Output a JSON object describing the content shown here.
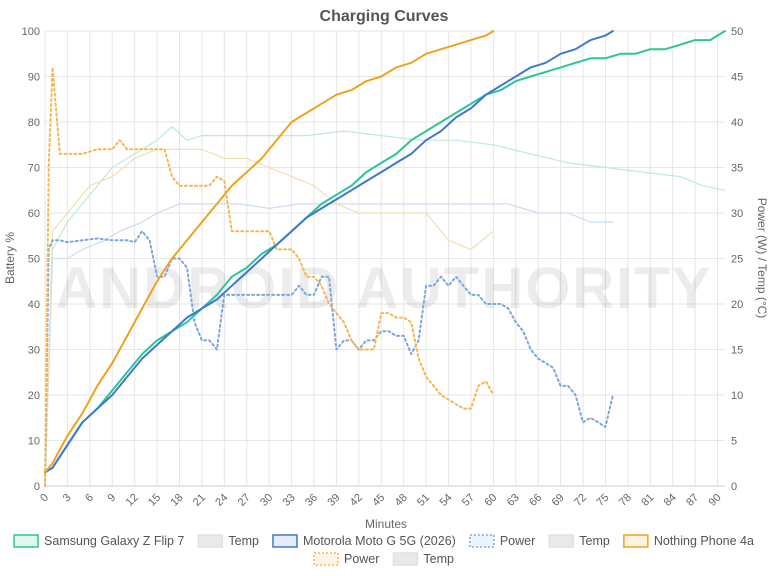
{
  "chart_data": {
    "type": "line",
    "title": "Charging Curves",
    "xlabel": "Minutes",
    "ylabel": "Battery %",
    "y2label": "Power (W) / Temp (°C)",
    "xlim": [
      0,
      91
    ],
    "ylim": [
      0,
      100
    ],
    "y2lim": [
      0,
      50
    ],
    "xticks": [
      "0",
      "3",
      "6",
      "9",
      "12",
      "15",
      "18",
      "21",
      "24",
      "27",
      "30",
      "33",
      "36",
      "39",
      "42",
      "45",
      "48",
      "51",
      "54",
      "57",
      "60",
      "63",
      "66",
      "69",
      "72",
      "75",
      "78",
      "81",
      "84",
      "87",
      "90"
    ],
    "yticks": [
      "0",
      "10",
      "20",
      "30",
      "40",
      "50",
      "60",
      "70",
      "80",
      "90",
      "100"
    ],
    "y2ticks": [
      "0",
      "5",
      "10",
      "15",
      "20",
      "25",
      "30",
      "35",
      "40",
      "45",
      "50"
    ],
    "grid": true,
    "legend_position": "bottom",
    "watermark": "ANDROID AUTHORITY",
    "series": [
      {
        "name": "Samsung Galaxy Z Flip 7",
        "metric": "battery",
        "axis": "left",
        "color": "#2bc59a",
        "style": "solid",
        "x": [
          0,
          1,
          3,
          5,
          7,
          9,
          11,
          13,
          15,
          17,
          19,
          21,
          23,
          25,
          27,
          29,
          31,
          33,
          35,
          37,
          39,
          41,
          43,
          45,
          47,
          49,
          51,
          53,
          55,
          57,
          59,
          61,
          63,
          65,
          67,
          69,
          71,
          73,
          75,
          77,
          79,
          81,
          83,
          85,
          87,
          89,
          91
        ],
        "y": [
          3,
          4,
          9,
          14,
          17,
          21,
          25,
          29,
          32,
          34,
          36,
          39,
          42,
          46,
          48,
          51,
          53,
          56,
          59,
          62,
          64,
          66,
          69,
          71,
          73,
          76,
          78,
          80,
          82,
          84,
          86,
          87,
          89,
          90,
          91,
          92,
          93,
          94,
          94,
          95,
          95,
          96,
          96,
          97,
          98,
          98,
          100
        ]
      },
      {
        "name": "Temp",
        "metric": "temp",
        "axis": "right",
        "color": "#bfe9dc",
        "style": "solid",
        "x": [
          0,
          1,
          3,
          5,
          7,
          9,
          11,
          13,
          15,
          17,
          19,
          21,
          25,
          30,
          35,
          40,
          45,
          50,
          55,
          60,
          65,
          70,
          75,
          80,
          85,
          88,
          91
        ],
        "y": [
          0,
          26,
          29,
          31,
          33,
          35,
          36,
          37,
          38,
          39.5,
          38,
          38.5,
          38.5,
          38.5,
          38.5,
          39,
          38.5,
          38,
          38,
          37.5,
          36.5,
          35.5,
          35,
          34.5,
          34,
          33,
          32.5
        ]
      },
      {
        "name": "Motorola Moto G 5G (2026)",
        "metric": "battery",
        "axis": "left",
        "color": "#3f78d0",
        "style": "solid",
        "x": [
          0,
          1,
          3,
          5,
          7,
          9,
          11,
          13,
          15,
          17,
          19,
          21,
          23,
          25,
          27,
          29,
          31,
          33,
          35,
          37,
          39,
          41,
          43,
          45,
          47,
          49,
          51,
          53,
          55,
          57,
          59,
          61,
          63,
          65,
          67,
          69,
          71,
          73,
          75,
          76
        ],
        "y": [
          3,
          4,
          9,
          14,
          17,
          20,
          24,
          28,
          31,
          34,
          37,
          39,
          41,
          44,
          47,
          50,
          53,
          56,
          59,
          61,
          63,
          65,
          67,
          69,
          71,
          73,
          76,
          78,
          81,
          83,
          86,
          88,
          90,
          92,
          93,
          95,
          96,
          98,
          99,
          100
        ]
      },
      {
        "name": "Power",
        "metric": "power",
        "axis": "right",
        "color": "#7ba7e0",
        "style": "dotted",
        "x": [
          0,
          0.5,
          1,
          2,
          3,
          5,
          7,
          9,
          11,
          12,
          13,
          14,
          15,
          16,
          17,
          18,
          19,
          20,
          21,
          22,
          23,
          24,
          25,
          26,
          27,
          28,
          29,
          30,
          31,
          32,
          33,
          34,
          35,
          36,
          37,
          38,
          39,
          40,
          41,
          42,
          43,
          44,
          45,
          46,
          47,
          48,
          49,
          50,
          51,
          52,
          53,
          54,
          55,
          56,
          57,
          58,
          59,
          60,
          61,
          62,
          63,
          64,
          65,
          66,
          67,
          68,
          69,
          70,
          71,
          72,
          73,
          74,
          75,
          76
        ],
        "y": [
          0,
          26,
          27,
          27,
          26.8,
          27,
          27.2,
          27,
          27,
          26.8,
          28,
          27,
          23,
          23,
          25,
          25,
          24,
          18,
          16,
          16,
          15,
          21,
          21,
          21,
          21,
          21,
          21,
          21,
          21,
          21,
          21,
          22,
          21,
          21,
          23,
          23,
          15,
          16,
          16,
          15,
          16,
          16,
          17,
          17,
          16.5,
          16.5,
          14.5,
          16,
          22,
          22,
          23,
          22,
          23,
          22,
          21,
          21,
          20,
          20,
          20,
          19.5,
          18,
          17,
          15,
          14,
          13.5,
          13,
          11,
          11,
          10,
          7,
          7.5,
          7,
          6.5,
          10
        ]
      },
      {
        "name": "Temp",
        "metric": "temp",
        "axis": "right",
        "color": "#c9ddf4",
        "style": "solid",
        "x": [
          0,
          1,
          3,
          5,
          8,
          10,
          13,
          15,
          18,
          22,
          26,
          30,
          34,
          38,
          42,
          46,
          50,
          54,
          58,
          62,
          66,
          70,
          73,
          74,
          76
        ],
        "y": [
          0,
          25,
          25,
          26,
          27,
          28,
          29,
          30,
          31,
          31,
          31,
          30.5,
          31,
          31,
          31,
          31,
          31,
          31,
          31,
          31,
          30,
          30,
          29,
          29,
          29
        ]
      },
      {
        "name": "Nothing Phone 4a",
        "metric": "battery",
        "axis": "left",
        "color": "#f0a21e",
        "style": "solid",
        "x": [
          0,
          1,
          3,
          5,
          7,
          9,
          11,
          13,
          15,
          17,
          19,
          21,
          23,
          25,
          27,
          29,
          31,
          33,
          35,
          37,
          39,
          41,
          43,
          45,
          47,
          49,
          51,
          53,
          55,
          57,
          59,
          60
        ],
        "y": [
          3,
          5,
          11,
          16,
          22,
          27,
          33,
          39,
          45,
          50,
          54,
          58,
          62,
          66,
          69,
          72,
          76,
          80,
          82,
          84,
          86,
          87,
          89,
          90,
          92,
          93,
          95,
          96,
          97,
          98,
          99,
          100
        ]
      },
      {
        "name": "Power",
        "metric": "power",
        "axis": "right",
        "color": "#f5b750",
        "style": "dotted",
        "x": [
          0,
          0.5,
          1,
          2,
          3,
          5,
          7,
          9,
          10,
          11,
          12,
          13,
          14,
          15,
          16,
          17,
          18,
          19,
          20,
          21,
          22,
          23,
          24,
          25,
          26,
          27,
          28,
          29,
          30,
          31,
          32,
          33,
          34,
          35,
          36,
          37,
          38,
          39,
          40,
          41,
          42,
          43,
          44,
          45,
          46,
          47,
          48,
          49,
          50,
          51,
          52,
          53,
          54,
          55,
          56,
          57,
          58,
          59,
          60
        ],
        "y": [
          0,
          35,
          46,
          36.5,
          36.5,
          36.5,
          37,
          37,
          38,
          37,
          37,
          37,
          37,
          37,
          37,
          34,
          33,
          33,
          33,
          33,
          33,
          34,
          33.5,
          28,
          28,
          28,
          28,
          28,
          28,
          26,
          26,
          26,
          25,
          23,
          23,
          22,
          20,
          19,
          18,
          16,
          15,
          15,
          15,
          19,
          19,
          18.5,
          18.5,
          18,
          14,
          12,
          11,
          10,
          9.5,
          9,
          8.5,
          8.5,
          11,
          11.5,
          10
        ]
      },
      {
        "name": "Temp",
        "metric": "temp",
        "axis": "right",
        "color": "#f3dfae",
        "style": "solid",
        "x": [
          0,
          1,
          3,
          6,
          9,
          12,
          15,
          18,
          21,
          24,
          27,
          30,
          33,
          36,
          39,
          42,
          45,
          48,
          51,
          54,
          57,
          60
        ],
        "y": [
          0,
          28,
          30,
          33,
          34,
          36,
          37,
          37,
          37,
          36,
          36,
          35,
          34,
          33,
          31,
          30,
          30,
          30,
          30,
          27,
          26,
          28
        ]
      }
    ],
    "legend": [
      {
        "label": "Samsung Galaxy Z Flip 7",
        "series": 0
      },
      {
        "label": "Temp",
        "series": 1
      },
      {
        "label": "Motorola Moto G 5G (2026)",
        "series": 2
      },
      {
        "label": "Power",
        "series": 3
      },
      {
        "label": "Temp",
        "series": 4
      },
      {
        "label": "Nothing Phone 4a",
        "series": 5
      },
      {
        "label": "Power",
        "series": 6
      },
      {
        "label": "Temp",
        "series": 7
      }
    ]
  }
}
